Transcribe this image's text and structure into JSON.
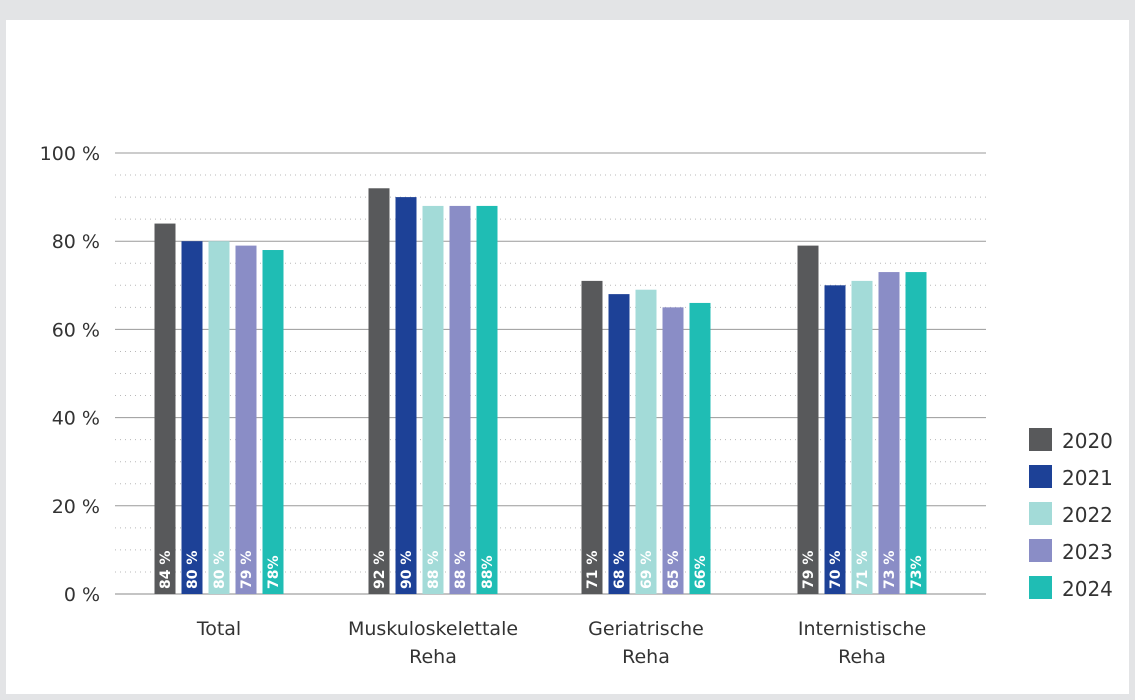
{
  "chart_data": {
    "type": "bar",
    "categories": [
      [
        "Total"
      ],
      [
        "Muskuloskelettale",
        "Reha"
      ],
      [
        "Geriatrische",
        "Reha"
      ],
      [
        "Internistische",
        "Reha"
      ]
    ],
    "series": [
      {
        "name": "2020",
        "color": "#58595b",
        "values": [
          84,
          92,
          71,
          79
        ],
        "labels": [
          "84 %",
          "92 %",
          "71 %",
          "79 %"
        ]
      },
      {
        "name": "2021",
        "color": "#1d4197",
        "values": [
          80,
          90,
          68,
          70
        ],
        "labels": [
          "80 %",
          "90 %",
          "68 %",
          "70 %"
        ]
      },
      {
        "name": "2022",
        "color": "#a3dbd8",
        "values": [
          80,
          88,
          69,
          71
        ],
        "labels": [
          "80 %",
          "88 %",
          "69 %",
          "71 %"
        ]
      },
      {
        "name": "2023",
        "color": "#8a8dc6",
        "values": [
          79,
          88,
          65,
          73
        ],
        "labels": [
          "79 %",
          "88 %",
          "65 %",
          "73 %"
        ]
      },
      {
        "name": "2024",
        "color": "#1fbdb4",
        "values": [
          78,
          88,
          66,
          73
        ],
        "labels": [
          "78%",
          "88%",
          "66%",
          "73%"
        ]
      }
    ],
    "y_ticks": [
      {
        "value": 0,
        "label": "0 %"
      },
      {
        "value": 20,
        "label": "20 %"
      },
      {
        "value": 40,
        "label": "40 %"
      },
      {
        "value": 60,
        "label": "60 %"
      },
      {
        "value": 80,
        "label": "80 %"
      },
      {
        "value": 100,
        "label": "100 %"
      }
    ],
    "ylim": [
      0,
      100
    ],
    "minor_grid_step": 5,
    "grid": true,
    "legend_position": "right"
  }
}
